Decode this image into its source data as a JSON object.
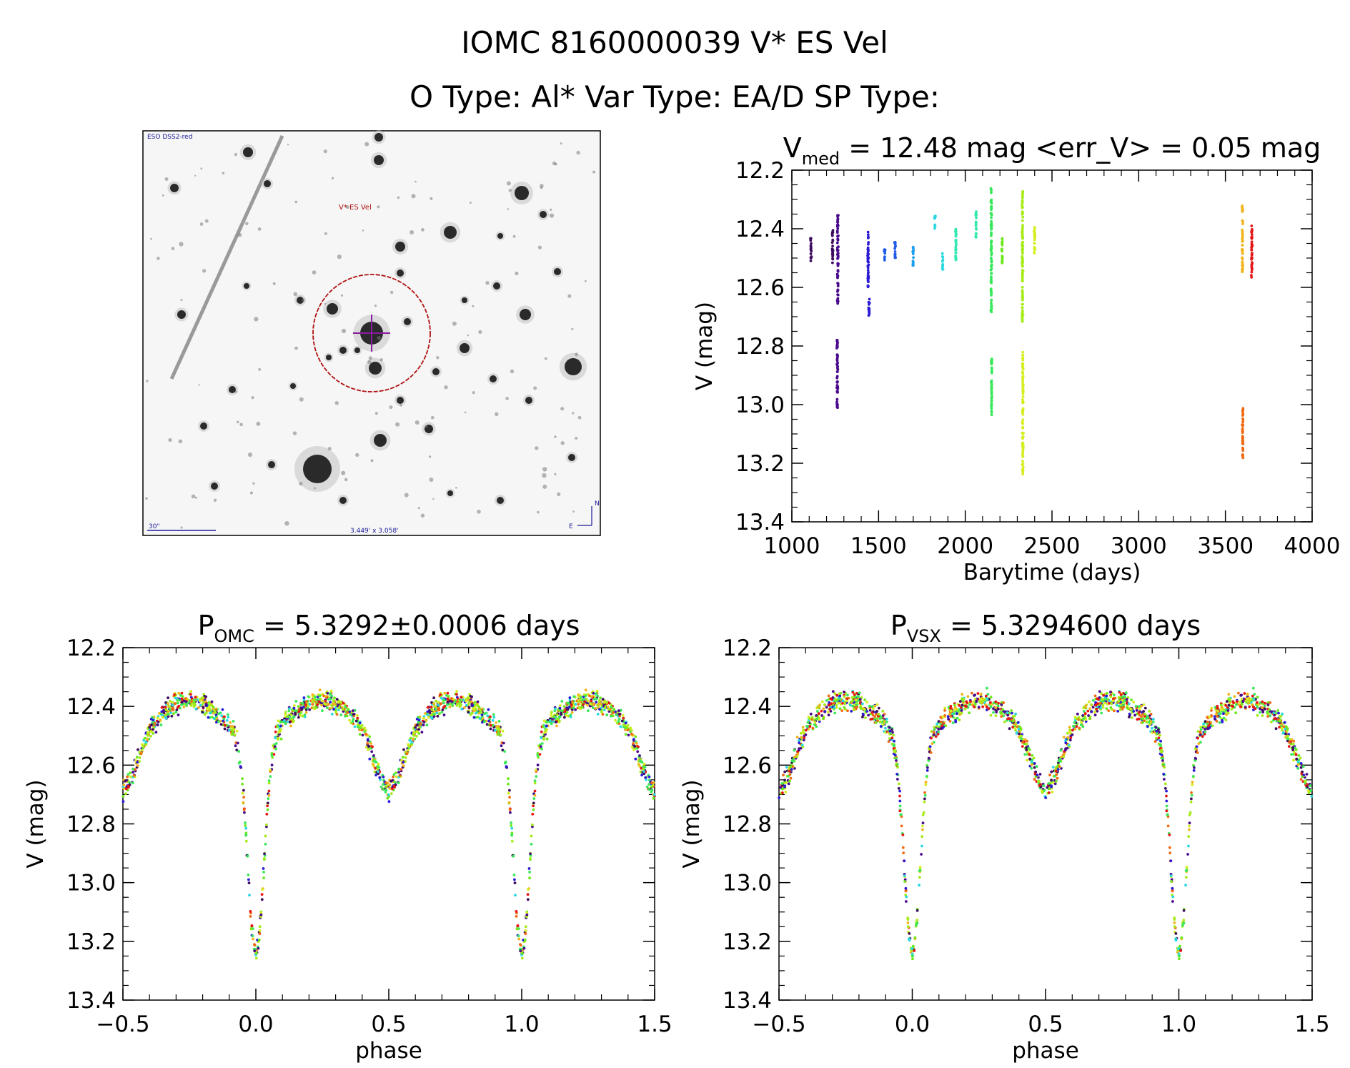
{
  "figure": {
    "title_line1": "IOMC 8160000039    V* ES Vel",
    "title_line2": "O Type: Al*  Var Type: EA/D  SP Type:"
  },
  "image_panel": {
    "survey_label": "ESO DSS2-red",
    "target_label": "V* ES Vel",
    "scale_label": "30\"",
    "fov_label": "3.449' x 3.058'",
    "compass_north": "N",
    "compass_east": "E"
  },
  "colors": {
    "palette": [
      "#3d0b5e",
      "#4a0a8c",
      "#2a1ad6",
      "#1f5be8",
      "#1d9ef2",
      "#2ad7e0",
      "#33e8b0",
      "#39e85a",
      "#6de81c",
      "#a6ec18",
      "#d6ee1f",
      "#f2b41c",
      "#f06a14",
      "#e41515"
    ],
    "target_circle": "#b01010",
    "target_cross": "#8b1aa0"
  },
  "chart_data": [
    {
      "id": "lightcurve",
      "type": "scatter",
      "title_prefix": "V",
      "title_sub": "med",
      "title_rest": " = 12.48 mag <err_V> = 0.05 mag",
      "xlabel": "Barytime (days)",
      "ylabel": "V (mag)",
      "xlim": [
        1000,
        4000
      ],
      "ylim": [
        13.4,
        12.2
      ],
      "x_ticks": [
        "1000",
        "1500",
        "2000",
        "2500",
        "3000",
        "3500",
        "4000"
      ],
      "y_ticks": [
        "12.2",
        "12.4",
        "12.6",
        "12.8",
        "13.0",
        "13.2",
        "13.4"
      ],
      "series": [
        {
          "name": "t1100",
          "color_index": 0,
          "x": 1110,
          "ymin": 12.43,
          "ymax": 12.51
        },
        {
          "name": "t1230",
          "color_index": 0,
          "x": 1235,
          "ymin": 12.4,
          "ymax": 12.52
        },
        {
          "name": "t1265",
          "color_index": 1,
          "x": 1265,
          "ymin": 12.35,
          "ymax": 12.66
        },
        {
          "name": "t1265b",
          "color_index": 1,
          "x": 1262,
          "ymin": 12.78,
          "ymax": 13.02
        },
        {
          "name": "t1440",
          "color_index": 2,
          "x": 1440,
          "ymin": 12.4,
          "ymax": 12.6
        },
        {
          "name": "t1440b",
          "color_index": 2,
          "x": 1445,
          "ymin": 12.64,
          "ymax": 12.7
        },
        {
          "name": "t1530",
          "color_index": 3,
          "x": 1535,
          "ymin": 12.47,
          "ymax": 12.51
        },
        {
          "name": "t1590",
          "color_index": 3,
          "x": 1595,
          "ymin": 12.44,
          "ymax": 12.5
        },
        {
          "name": "t1700",
          "color_index": 4,
          "x": 1700,
          "ymin": 12.46,
          "ymax": 12.54
        },
        {
          "name": "t1820",
          "color_index": 5,
          "x": 1825,
          "ymin": 12.35,
          "ymax": 12.4
        },
        {
          "name": "t1870",
          "color_index": 5,
          "x": 1870,
          "ymin": 12.48,
          "ymax": 12.54
        },
        {
          "name": "t1940",
          "color_index": 6,
          "x": 1945,
          "ymin": 12.39,
          "ymax": 12.52
        },
        {
          "name": "t2060",
          "color_index": 6,
          "x": 2062,
          "ymin": 12.34,
          "ymax": 12.43
        },
        {
          "name": "t2150",
          "color_index": 7,
          "x": 2150,
          "ymin": 12.26,
          "ymax": 12.69
        },
        {
          "name": "t2150b",
          "color_index": 7,
          "x": 2152,
          "ymin": 12.84,
          "ymax": 13.04
        },
        {
          "name": "t2210",
          "color_index": 8,
          "x": 2212,
          "ymin": 12.43,
          "ymax": 12.52
        },
        {
          "name": "t2330",
          "color_index": 9,
          "x": 2330,
          "ymin": 12.27,
          "ymax": 12.72
        },
        {
          "name": "t2330b",
          "color_index": 10,
          "x": 2332,
          "ymin": 12.82,
          "ymax": 13.24
        },
        {
          "name": "t2400",
          "color_index": 10,
          "x": 2400,
          "ymin": 12.39,
          "ymax": 12.49
        },
        {
          "name": "t3600",
          "color_index": 11,
          "x": 3598,
          "ymin": 12.32,
          "ymax": 12.55
        },
        {
          "name": "t3600b",
          "color_index": 12,
          "x": 3600,
          "ymin": 13.0,
          "ymax": 13.19
        },
        {
          "name": "t3650",
          "color_index": 13,
          "x": 3652,
          "ymin": 12.39,
          "ymax": 12.57
        }
      ]
    },
    {
      "id": "phase_omc",
      "type": "scatter",
      "title_prefix": "P",
      "title_sub": "OMC",
      "title_rest": " = 5.3292±0.0006 days",
      "xlabel": "phase",
      "ylabel": "V (mag)",
      "xlim": [
        -0.5,
        1.5
      ],
      "ylim": [
        13.4,
        12.2
      ],
      "x_ticks": [
        "−0.5",
        "0.0",
        "0.5",
        "1.0",
        "1.5"
      ],
      "y_ticks": [
        "12.2",
        "12.4",
        "12.6",
        "12.8",
        "13.0",
        "13.2",
        "13.4"
      ],
      "period": 5.3292,
      "curve": {
        "base_mag": 12.44,
        "primary_depth": 0.74,
        "primary_width": 0.03,
        "secondary_depth": 0.18,
        "secondary_width": 0.05
      }
    },
    {
      "id": "phase_vsx",
      "type": "scatter",
      "title_prefix": "P",
      "title_sub": "VSX",
      "title_rest": " = 5.3294600 days",
      "xlabel": "phase",
      "ylabel": "V (mag)",
      "xlim": [
        -0.5,
        1.5
      ],
      "ylim": [
        13.4,
        12.2
      ],
      "x_ticks": [
        "−0.5",
        "0.0",
        "0.5",
        "1.0",
        "1.5"
      ],
      "y_ticks": [
        "12.2",
        "12.4",
        "12.6",
        "12.8",
        "13.0",
        "13.2",
        "13.4"
      ],
      "period": 5.32946,
      "curve": {
        "base_mag": 12.44,
        "primary_depth": 0.74,
        "primary_width": 0.03,
        "secondary_depth": 0.18,
        "secondary_width": 0.05
      }
    }
  ]
}
